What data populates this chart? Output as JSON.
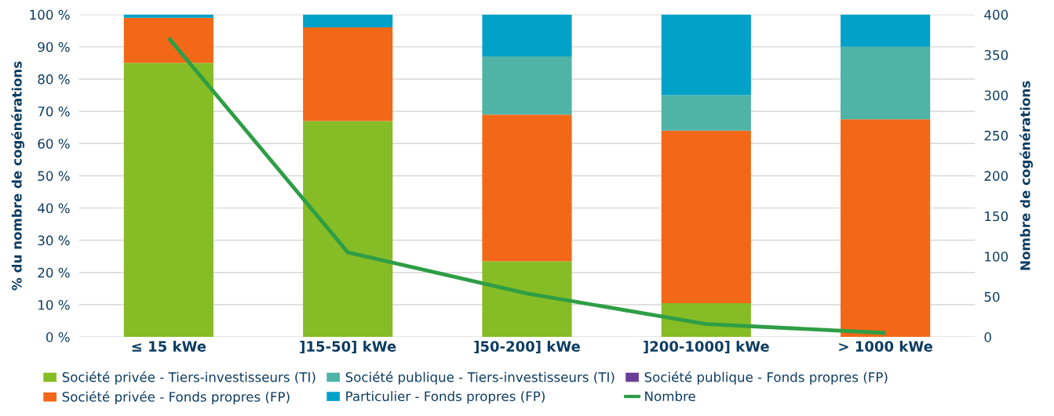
{
  "chart_data": {
    "type": "bar",
    "stacked": true,
    "categories": [
      "≤ 15 kWe",
      "]15-50] kWe",
      "]50-200] kWe",
      "]200-1000] kWe",
      "> 1000 kWe"
    ],
    "ylabel": "% du nombre de cogénérations",
    "y2label": "Nombre de cogénérations",
    "ylim": [
      0,
      100
    ],
    "yticks": [
      {
        "value": 0,
        "label": "0 %"
      },
      {
        "value": 10,
        "label": "10 %"
      },
      {
        "value": 20,
        "label": "20 %"
      },
      {
        "value": 30,
        "label": "30 %"
      },
      {
        "value": 40,
        "label": "40 %"
      },
      {
        "value": 50,
        "label": "50 %"
      },
      {
        "value": 60,
        "label": "60 %"
      },
      {
        "value": 70,
        "label": "70 %"
      },
      {
        "value": 80,
        "label": "80 %"
      },
      {
        "value": 90,
        "label": "90 %"
      },
      {
        "value": 100,
        "label": "100 %"
      }
    ],
    "y2lim": [
      0,
      400
    ],
    "y2ticks": [
      0,
      50,
      100,
      150,
      200,
      250,
      300,
      350,
      400
    ],
    "grid": "y",
    "legend": "bottom",
    "series": [
      {
        "name": "Société privée - Tiers-investisseurs (TI)",
        "color": "#86bc25",
        "values": [
          85,
          67,
          23.5,
          10.5,
          0
        ]
      },
      {
        "name": "Société privée - Fonds propres (FP)",
        "color": "#f26818",
        "values": [
          14,
          29,
          45.5,
          53.5,
          67.5
        ]
      },
      {
        "name": "Société publique - Tiers-investisseurs (TI)",
        "color": "#4fb3a6",
        "values": [
          0,
          0,
          18,
          11,
          22.5
        ]
      },
      {
        "name": "Particulier - Fonds propres (FP)",
        "color": "#02a1c7",
        "values": [
          1,
          4,
          13,
          25,
          10
        ]
      },
      {
        "name": "Société publique - Fonds propres (FP)",
        "color": "#6a3d96",
        "values": [
          0,
          0,
          0,
          0,
          0
        ]
      },
      {
        "name": "Nombre",
        "type": "line",
        "axis": "y2",
        "color": "#2e9e46",
        "values": [
          371,
          105,
          54,
          16,
          5
        ]
      }
    ]
  }
}
